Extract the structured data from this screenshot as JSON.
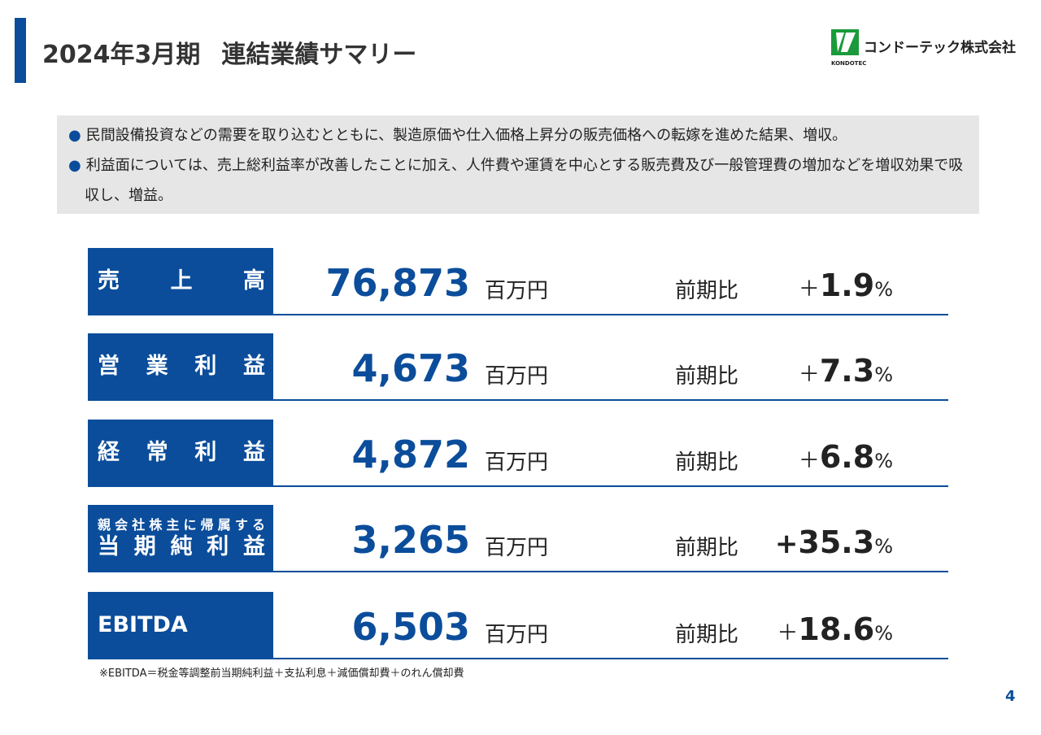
{
  "header": {
    "title_period": "2024年3月期",
    "title_main": "連結業績サマリー",
    "logo_text": "コンドーテック株式会社",
    "logo_sub": "KONDOTEC"
  },
  "bullets": [
    "民間設備投資などの需要を取り込むとともに、製造原価や仕入価格上昇分の販売価格への転嫁を進めた結果、増収。",
    "利益面については、売上総利益率が改善したことに加え、人件費や運賃を中心とする販売費及び一般管理費の増加などを増収効果で吸収し、増益。"
  ],
  "rows": [
    {
      "label": "売上高",
      "value": "76,873",
      "unit": "百万円",
      "compare": "前期比",
      "sign": "＋",
      "change": "1.9",
      "change_unit": "%"
    },
    {
      "label": "営業利益",
      "value": "4,673",
      "unit": "百万円",
      "compare": "前期比",
      "sign": "＋",
      "change": "7.3",
      "change_unit": "%"
    },
    {
      "label": "経常利益",
      "value": "4,872",
      "unit": "百万円",
      "compare": "前期比",
      "sign": "＋",
      "change": "6.8",
      "change_unit": "%"
    },
    {
      "label_small": "親会社株主に帰属する",
      "label": "当期純利益",
      "value": "3,265",
      "unit": "百万円",
      "compare": "前期比",
      "sign": "+",
      "change": "35.3",
      "change_unit": "%"
    },
    {
      "label": "EBITDA",
      "value": "6,503",
      "unit": "百万円",
      "compare": "前期比",
      "sign": "＋",
      "change": "18.6",
      "change_unit": "%"
    }
  ],
  "footnote": "※EBITDA＝税金等調整前当期純利益＋支払利息＋減価償却費＋のれん償却費",
  "page_number": "4"
}
